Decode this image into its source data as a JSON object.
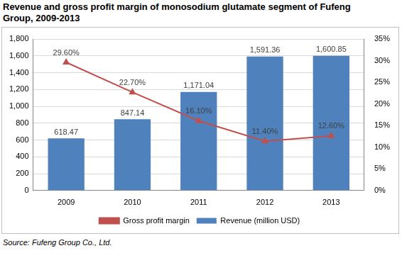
{
  "chart_data": {
    "type": "bar",
    "title": "Revenue  and gross profit margin of monosodium glutamate segment of Fufeng Group, 2009-2013",
    "source": "Source: Fufeng Group Co., Ltd.",
    "categories": [
      "2009",
      "2010",
      "2011",
      "2012",
      "2013"
    ],
    "series": [
      {
        "name": "Revenue (million USD)",
        "type": "bar",
        "color": "#4f81bd",
        "values": [
          618.47,
          847.14,
          1171.04,
          1591.36,
          1600.85
        ],
        "value_labels": [
          "618.47",
          "847.14",
          "1,171.04",
          "1,591.36",
          "1,600.85"
        ]
      },
      {
        "name": "Gross profit margin",
        "type": "line",
        "axis": "y2",
        "color": "#c0504d",
        "marker": "triangle",
        "line_style": "solid",
        "values": [
          29.6,
          22.7,
          16.1,
          11.4,
          12.6
        ],
        "value_labels": [
          "29.60%",
          "22.70%",
          "16.10%",
          "11.40%",
          "12.60%"
        ]
      }
    ],
    "ylim": [
      0,
      1800
    ],
    "yticks": [
      0,
      200,
      400,
      600,
      800,
      {
        "value": 1000,
        "label": "1,000"
      },
      {
        "value": 1200,
        "label": "1,200"
      },
      {
        "value": 1400,
        "label": "1,400"
      },
      {
        "value": 1600,
        "label": "1,600"
      },
      {
        "value": 1800,
        "label": "1,800"
      }
    ],
    "y2lim": [
      0,
      35
    ],
    "y2ticks": [
      {
        "value": 0,
        "label": "0%"
      },
      {
        "value": 5,
        "label": "5%"
      },
      {
        "value": 10,
        "label": "10%"
      },
      {
        "value": 15,
        "label": "15%"
      },
      {
        "value": 20,
        "label": "20%"
      },
      {
        "value": 25,
        "label": "25%"
      },
      {
        "value": 30,
        "label": "30%"
      },
      {
        "value": 35,
        "label": "35%"
      }
    ],
    "grid": true,
    "legend": "bottom",
    "data_labels": true
  }
}
